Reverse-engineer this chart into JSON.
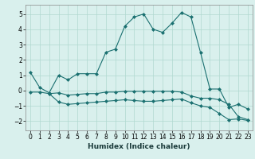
{
  "title": "",
  "xlabel": "Humidex (Indice chaleur)",
  "xlim": [
    -0.5,
    23.5
  ],
  "ylim": [
    -2.6,
    5.6
  ],
  "yticks": [
    -2,
    -1,
    0,
    1,
    2,
    3,
    4,
    5
  ],
  "xticks": [
    0,
    1,
    2,
    3,
    4,
    5,
    6,
    7,
    8,
    9,
    10,
    11,
    12,
    13,
    14,
    15,
    16,
    17,
    18,
    19,
    20,
    21,
    22,
    23
  ],
  "bg_color": "#d9f0ed",
  "grid_color": "#b0d8d0",
  "line_color": "#1a7070",
  "line1_x": [
    0,
    1,
    2,
    3,
    4,
    5,
    6,
    7,
    8,
    9,
    10,
    11,
    12,
    13,
    14,
    15,
    16,
    17,
    18,
    19,
    20,
    21,
    22,
    23
  ],
  "line1_y": [
    1.2,
    0.2,
    -0.15,
    1.0,
    0.7,
    1.1,
    1.1,
    1.1,
    2.5,
    2.7,
    4.2,
    4.8,
    5.0,
    4.0,
    3.8,
    4.4,
    5.1,
    4.8,
    2.5,
    0.1,
    0.1,
    -1.1,
    -0.9,
    -1.2
  ],
  "line2_x": [
    0,
    1,
    2,
    3,
    4,
    5,
    6,
    7,
    8,
    9,
    10,
    11,
    12,
    13,
    14,
    15,
    16,
    17,
    18,
    19,
    20,
    21,
    22,
    23
  ],
  "line2_y": [
    -0.1,
    -0.1,
    -0.2,
    -0.15,
    -0.3,
    -0.25,
    -0.2,
    -0.2,
    -0.1,
    -0.1,
    -0.05,
    -0.05,
    -0.05,
    -0.05,
    -0.05,
    -0.05,
    -0.1,
    -0.35,
    -0.5,
    -0.5,
    -0.6,
    -0.9,
    -1.7,
    -1.9
  ],
  "line3_x": [
    2,
    3,
    4,
    5,
    6,
    7,
    8,
    9,
    10,
    11,
    12,
    13,
    14,
    15,
    16,
    17,
    18,
    19,
    20,
    21,
    22,
    23
  ],
  "line3_y": [
    -0.2,
    -0.75,
    -0.9,
    -0.85,
    -0.8,
    -0.75,
    -0.7,
    -0.65,
    -0.6,
    -0.65,
    -0.7,
    -0.7,
    -0.65,
    -0.6,
    -0.55,
    -0.8,
    -1.0,
    -1.1,
    -1.5,
    -1.9,
    -1.85,
    -1.95
  ],
  "markersize": 2.5,
  "linewidth": 0.8,
  "tick_fontsize": 5.5,
  "xlabel_fontsize": 6.5
}
